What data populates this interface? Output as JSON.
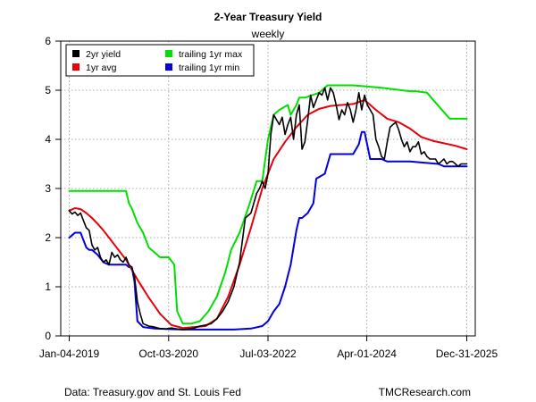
{
  "chart_data": {
    "type": "line",
    "title": "2-Year Treasury Yield",
    "subtitle": "weekly",
    "xlabel": "",
    "ylabel": "",
    "ylim": [
      0,
      6
    ],
    "yticks": [
      "0",
      "1",
      "2",
      "3",
      "4",
      "5",
      "6"
    ],
    "xlim": [
      -0.15,
      7.15
    ],
    "xticks": [
      {
        "x": 0,
        "label": "Jan-04-2019"
      },
      {
        "x": 1.75,
        "label": "Oct-03-2020"
      },
      {
        "x": 3.5,
        "label": "Jul-03-2022"
      },
      {
        "x": 5.24,
        "label": "Apr-01-2024"
      },
      {
        "x": 7,
        "label": "Dec-31-2025"
      }
    ],
    "grid": true,
    "legend": {
      "position": "top-left",
      "entries": [
        {
          "label": "2yr yield",
          "color": "#000000"
        },
        {
          "label": "1yr avg",
          "color": "#e8000b"
        },
        {
          "label": "trailing 1yr max",
          "color": "#00e000"
        },
        {
          "label": "trailing 1yr min",
          "color": "#0000e0"
        }
      ]
    },
    "series": [
      {
        "name": "2yr yield",
        "color": "#000000",
        "x": [
          0,
          0.05,
          0.1,
          0.15,
          0.2,
          0.25,
          0.3,
          0.35,
          0.4,
          0.45,
          0.5,
          0.55,
          0.6,
          0.65,
          0.7,
          0.75,
          0.8,
          0.85,
          0.9,
          0.95,
          1.0,
          1.05,
          1.1,
          1.15,
          1.2,
          1.25,
          1.3,
          1.4,
          1.5,
          1.6,
          1.7,
          1.8,
          1.9,
          2.0,
          2.1,
          2.2,
          2.3,
          2.4,
          2.5,
          2.6,
          2.7,
          2.8,
          2.9,
          3.0,
          3.1,
          3.2,
          3.25,
          3.3,
          3.35,
          3.4,
          3.45,
          3.5,
          3.55,
          3.6,
          3.65,
          3.7,
          3.75,
          3.8,
          3.85,
          3.9,
          3.95,
          4.0,
          4.05,
          4.1,
          4.15,
          4.2,
          4.25,
          4.3,
          4.35,
          4.4,
          4.45,
          4.5,
          4.55,
          4.6,
          4.65,
          4.7,
          4.75,
          4.8,
          4.85,
          4.9,
          4.95,
          5.0,
          5.05,
          5.1,
          5.15,
          5.2,
          5.25,
          5.3,
          5.35,
          5.4,
          5.45,
          5.5,
          5.55,
          5.6,
          5.65,
          5.7,
          5.75,
          5.8,
          5.85,
          5.9,
          5.95,
          6.0,
          6.05,
          6.1,
          6.15,
          6.2,
          6.25,
          6.3,
          6.35,
          6.4,
          6.45,
          6.5,
          6.55,
          6.6,
          6.65,
          6.7,
          6.75,
          6.8,
          6.85,
          6.9,
          6.95,
          7.0
        ],
        "values": [
          2.55,
          2.48,
          2.52,
          2.45,
          2.5,
          2.35,
          2.2,
          2.15,
          1.85,
          1.75,
          1.8,
          1.6,
          1.5,
          1.55,
          1.45,
          1.7,
          1.6,
          1.65,
          1.55,
          1.5,
          1.6,
          1.45,
          1.4,
          1.2,
          0.7,
          0.45,
          0.25,
          0.2,
          0.18,
          0.15,
          0.14,
          0.16,
          0.14,
          0.13,
          0.14,
          0.16,
          0.2,
          0.22,
          0.25,
          0.35,
          0.5,
          0.7,
          1.0,
          1.5,
          2.4,
          2.5,
          2.7,
          2.9,
          3.0,
          3.15,
          3.0,
          3.3,
          4.1,
          4.5,
          4.4,
          4.3,
          4.45,
          4.1,
          4.3,
          4.45,
          4.0,
          4.5,
          4.7,
          3.8,
          3.95,
          4.4,
          4.9,
          4.65,
          4.8,
          4.95,
          4.9,
          5.05,
          4.8,
          5.05,
          4.95,
          4.7,
          4.4,
          4.6,
          4.5,
          4.75,
          4.6,
          4.35,
          4.6,
          4.95,
          4.6,
          4.9,
          4.7,
          4.6,
          4.5,
          4.0,
          3.85,
          3.65,
          3.6,
          3.95,
          4.25,
          4.3,
          4.35,
          4.2,
          4.0,
          3.85,
          3.95,
          3.75,
          3.85,
          3.85,
          3.95,
          3.7,
          3.75,
          3.65,
          3.6,
          3.6,
          3.6,
          3.5,
          3.55,
          3.6,
          3.5,
          3.55,
          3.55,
          3.5,
          3.45,
          3.5,
          3.5,
          3.5
        ]
      },
      {
        "name": "1yr avg",
        "color": "#e8000b",
        "x": [
          0,
          0.1,
          0.2,
          0.3,
          0.4,
          0.5,
          0.6,
          0.7,
          0.8,
          0.9,
          1.0,
          1.2,
          1.4,
          1.6,
          1.8,
          2.0,
          2.2,
          2.4,
          2.6,
          2.8,
          3.0,
          3.2,
          3.4,
          3.6,
          3.8,
          4.0,
          4.2,
          4.4,
          4.6,
          4.8,
          5.0,
          5.2,
          5.4,
          5.6,
          5.8,
          6.0,
          6.2,
          6.4,
          6.6,
          6.8,
          7.0
        ],
        "values": [
          2.55,
          2.6,
          2.58,
          2.5,
          2.4,
          2.28,
          2.15,
          2.0,
          1.85,
          1.7,
          1.55,
          1.15,
          0.78,
          0.45,
          0.22,
          0.16,
          0.18,
          0.2,
          0.35,
          0.8,
          1.45,
          2.2,
          3.0,
          3.6,
          3.95,
          4.25,
          4.5,
          4.62,
          4.68,
          4.7,
          4.72,
          4.8,
          4.6,
          4.42,
          4.35,
          4.22,
          4.05,
          3.97,
          3.92,
          3.87,
          3.8
        ]
      },
      {
        "name": "trailing 1yr max",
        "color": "#00e000",
        "x": [
          0,
          0.35,
          0.7,
          1.0,
          1.05,
          1.1,
          1.15,
          1.2,
          1.3,
          1.4,
          1.5,
          1.6,
          1.75,
          1.85,
          1.9,
          2.0,
          2.1,
          2.15,
          2.3,
          2.45,
          2.6,
          2.75,
          2.85,
          3.0,
          3.15,
          3.3,
          3.4,
          3.5,
          3.6,
          3.7,
          3.85,
          3.9,
          4.0,
          4.05,
          4.15,
          4.4,
          4.5,
          4.55,
          5.0,
          5.5,
          6.0,
          6.1,
          6.3,
          6.45,
          6.7,
          7.0
        ],
        "values": [
          2.95,
          2.95,
          2.95,
          2.95,
          2.7,
          2.6,
          2.45,
          2.3,
          2.1,
          1.8,
          1.7,
          1.6,
          1.6,
          1.45,
          0.5,
          0.25,
          0.25,
          0.25,
          0.3,
          0.5,
          0.8,
          1.3,
          1.75,
          2.1,
          2.6,
          3.15,
          3.15,
          4.0,
          4.5,
          4.6,
          4.7,
          4.5,
          4.7,
          4.85,
          4.85,
          4.95,
          5.05,
          5.1,
          5.1,
          5.05,
          4.98,
          4.98,
          4.95,
          4.75,
          4.42,
          4.42
        ]
      },
      {
        "name": "trailing 1yr min",
        "color": "#0000e0",
        "x": [
          0,
          0.05,
          0.1,
          0.2,
          0.3,
          0.35,
          0.4,
          0.5,
          0.6,
          0.7,
          0.8,
          1.0,
          1.05,
          1.1,
          1.15,
          1.2,
          1.3,
          1.5,
          1.7,
          2.0,
          2.3,
          2.6,
          2.9,
          3.2,
          3.4,
          3.5,
          3.6,
          3.7,
          3.8,
          3.9,
          4.0,
          4.05,
          4.1,
          4.2,
          4.3,
          4.35,
          4.5,
          4.6,
          5.0,
          5.1,
          5.15,
          5.2,
          5.3,
          5.5,
          5.6,
          5.7,
          6.0,
          6.5,
          6.6,
          7.0
        ],
        "values": [
          2.0,
          2.05,
          2.1,
          2.1,
          1.8,
          1.75,
          1.75,
          1.65,
          1.5,
          1.45,
          1.45,
          1.45,
          1.4,
          1.4,
          1.1,
          0.3,
          0.18,
          0.15,
          0.14,
          0.13,
          0.13,
          0.13,
          0.13,
          0.15,
          0.2,
          0.3,
          0.5,
          0.65,
          1.0,
          1.45,
          2.15,
          2.4,
          2.4,
          2.5,
          2.7,
          3.2,
          3.3,
          3.7,
          3.7,
          3.9,
          4.15,
          4.15,
          3.6,
          3.6,
          3.55,
          3.55,
          3.55,
          3.5,
          3.45,
          3.45
        ]
      }
    ]
  },
  "footer": {
    "source": "Data: Treasury.gov and St. Louis Fed",
    "credit": "TMCResearch.com"
  }
}
